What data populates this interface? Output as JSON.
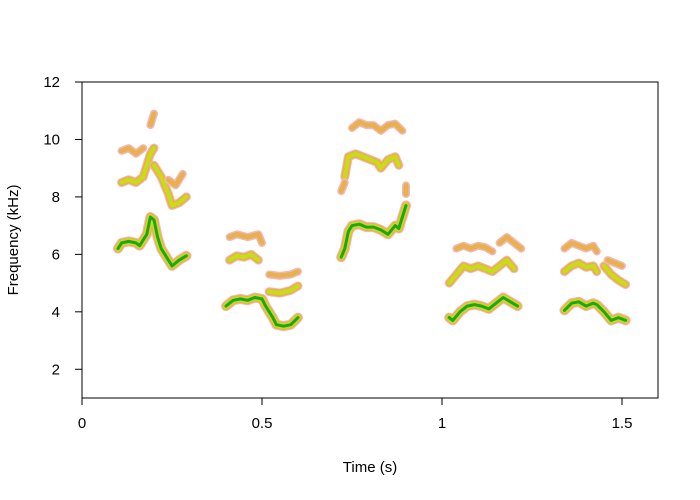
{
  "chart_data": {
    "type": "spectrogram",
    "title": "",
    "xlabel": "Time (s)",
    "ylabel": "Frequency (kHz)",
    "xlim": [
      0,
      1.6
    ],
    "ylim": [
      1,
      12
    ],
    "x_ticks": [
      0,
      0.5,
      1,
      1.5
    ],
    "x_tick_labels": [
      "0",
      "0.5",
      "1",
      "1.5"
    ],
    "y_ticks": [
      2,
      4,
      6,
      8,
      10,
      12
    ],
    "y_tick_labels": [
      "2",
      "4",
      "6",
      "8",
      "10",
      "12"
    ],
    "grid": false,
    "intensity_colors": {
      "low": "#f2b8b8",
      "mid": "#e8b04e",
      "high": "#c8dc18",
      "peak": "#1ea51e"
    },
    "syllables": [
      {
        "start": 0.1,
        "end": 0.29,
        "harmonics": [
          {
            "level": "peak",
            "points": [
              [
                0.1,
                6.2
              ],
              [
                0.11,
                6.4
              ],
              [
                0.13,
                6.45
              ],
              [
                0.15,
                6.4
              ],
              [
                0.16,
                6.3
              ],
              [
                0.18,
                6.7
              ],
              [
                0.19,
                7.3
              ],
              [
                0.2,
                7.2
              ],
              [
                0.21,
                6.6
              ],
              [
                0.22,
                6.2
              ],
              [
                0.24,
                5.8
              ],
              [
                0.25,
                5.6
              ],
              [
                0.27,
                5.8
              ],
              [
                0.29,
                5.95
              ]
            ]
          },
          {
            "level": "high",
            "points": [
              [
                0.11,
                8.5
              ],
              [
                0.13,
                8.6
              ],
              [
                0.15,
                8.5
              ],
              [
                0.17,
                8.7
              ],
              [
                0.19,
                9.5
              ],
              [
                0.2,
                9.7
              ]
            ]
          },
          {
            "level": "high",
            "points": [
              [
                0.2,
                9.1
              ],
              [
                0.22,
                8.7
              ],
              [
                0.24,
                8.1
              ],
              [
                0.25,
                7.7
              ],
              [
                0.27,
                7.8
              ],
              [
                0.29,
                8.0
              ]
            ]
          },
          {
            "level": "mid",
            "points": [
              [
                0.11,
                9.6
              ],
              [
                0.13,
                9.7
              ],
              [
                0.15,
                9.5
              ],
              [
                0.17,
                9.7
              ]
            ]
          },
          {
            "level": "mid",
            "points": [
              [
                0.19,
                10.5
              ],
              [
                0.2,
                10.9
              ]
            ]
          },
          {
            "level": "mid",
            "points": [
              [
                0.24,
                8.6
              ],
              [
                0.26,
                8.4
              ],
              [
                0.28,
                8.8
              ]
            ]
          }
        ]
      },
      {
        "start": 0.4,
        "end": 0.6,
        "harmonics": [
          {
            "level": "peak",
            "points": [
              [
                0.4,
                4.2
              ],
              [
                0.42,
                4.4
              ],
              [
                0.44,
                4.45
              ],
              [
                0.46,
                4.4
              ],
              [
                0.48,
                4.5
              ],
              [
                0.5,
                4.45
              ],
              [
                0.51,
                4.2
              ],
              [
                0.53,
                3.8
              ],
              [
                0.54,
                3.55
              ],
              [
                0.56,
                3.5
              ],
              [
                0.58,
                3.55
              ],
              [
                0.6,
                3.8
              ]
            ]
          },
          {
            "level": "high",
            "points": [
              [
                0.41,
                5.8
              ],
              [
                0.43,
                5.95
              ],
              [
                0.45,
                5.9
              ],
              [
                0.47,
                6.0
              ],
              [
                0.49,
                5.8
              ]
            ]
          },
          {
            "level": "high",
            "points": [
              [
                0.52,
                4.7
              ],
              [
                0.55,
                4.65
              ],
              [
                0.58,
                4.75
              ],
              [
                0.6,
                4.9
              ]
            ]
          },
          {
            "level": "mid",
            "points": [
              [
                0.41,
                6.6
              ],
              [
                0.43,
                6.7
              ],
              [
                0.46,
                6.6
              ],
              [
                0.49,
                6.7
              ],
              [
                0.5,
                6.4
              ]
            ]
          },
          {
            "level": "mid",
            "points": [
              [
                0.52,
                5.3
              ],
              [
                0.55,
                5.25
              ],
              [
                0.58,
                5.3
              ],
              [
                0.6,
                5.4
              ]
            ]
          }
        ]
      },
      {
        "start": 0.72,
        "end": 0.9,
        "harmonics": [
          {
            "level": "peak",
            "points": [
              [
                0.72,
                5.9
              ],
              [
                0.73,
                6.2
              ],
              [
                0.74,
                6.8
              ],
              [
                0.75,
                7.0
              ],
              [
                0.77,
                7.05
              ],
              [
                0.79,
                6.95
              ],
              [
                0.81,
                6.95
              ],
              [
                0.83,
                6.85
              ],
              [
                0.85,
                6.7
              ],
              [
                0.87,
                7.0
              ],
              [
                0.88,
                6.9
              ],
              [
                0.9,
                7.7
              ]
            ]
          },
          {
            "level": "high",
            "points": [
              [
                0.73,
                8.7
              ],
              [
                0.74,
                9.4
              ],
              [
                0.76,
                9.5
              ],
              [
                0.78,
                9.4
              ],
              [
                0.8,
                9.3
              ],
              [
                0.82,
                9.2
              ],
              [
                0.83,
                9.0
              ],
              [
                0.85,
                9.3
              ],
              [
                0.87,
                9.4
              ],
              [
                0.88,
                9.1
              ]
            ]
          },
          {
            "level": "mid",
            "points": [
              [
                0.75,
                10.4
              ],
              [
                0.77,
                10.6
              ],
              [
                0.79,
                10.5
              ],
              [
                0.81,
                10.5
              ],
              [
                0.83,
                10.3
              ],
              [
                0.85,
                10.5
              ],
              [
                0.87,
                10.55
              ],
              [
                0.89,
                10.3
              ]
            ]
          },
          {
            "level": "mid",
            "points": [
              [
                0.72,
                8.2
              ],
              [
                0.73,
                8.5
              ]
            ]
          },
          {
            "level": "mid",
            "points": [
              [
                0.9,
                8.4
              ],
              [
                0.9,
                8.1
              ]
            ]
          }
        ]
      },
      {
        "start": 1.02,
        "end": 1.21,
        "harmonics": [
          {
            "level": "peak",
            "points": [
              [
                1.02,
                3.8
              ],
              [
                1.03,
                3.7
              ],
              [
                1.05,
                4.0
              ],
              [
                1.07,
                4.2
              ],
              [
                1.09,
                4.25
              ],
              [
                1.11,
                4.2
              ],
              [
                1.13,
                4.1
              ],
              [
                1.15,
                4.3
              ],
              [
                1.17,
                4.5
              ],
              [
                1.19,
                4.35
              ],
              [
                1.21,
                4.2
              ]
            ]
          },
          {
            "level": "high",
            "points": [
              [
                1.02,
                5.0
              ],
              [
                1.04,
                5.3
              ],
              [
                1.06,
                5.6
              ],
              [
                1.08,
                5.5
              ],
              [
                1.1,
                5.6
              ],
              [
                1.12,
                5.5
              ],
              [
                1.14,
                5.4
              ],
              [
                1.16,
                5.6
              ],
              [
                1.18,
                5.8
              ],
              [
                1.2,
                5.5
              ]
            ]
          },
          {
            "level": "mid",
            "points": [
              [
                1.04,
                6.2
              ],
              [
                1.06,
                6.3
              ],
              [
                1.08,
                6.2
              ],
              [
                1.1,
                6.3
              ],
              [
                1.12,
                6.25
              ],
              [
                1.14,
                6.1
              ]
            ]
          },
          {
            "level": "mid",
            "points": [
              [
                1.16,
                6.4
              ],
              [
                1.18,
                6.6
              ],
              [
                1.2,
                6.4
              ],
              [
                1.22,
                6.2
              ]
            ]
          }
        ]
      },
      {
        "start": 1.34,
        "end": 1.51,
        "harmonics": [
          {
            "level": "peak",
            "points": [
              [
                1.34,
                4.05
              ],
              [
                1.36,
                4.3
              ],
              [
                1.38,
                4.35
              ],
              [
                1.4,
                4.2
              ],
              [
                1.42,
                4.3
              ],
              [
                1.43,
                4.25
              ],
              [
                1.45,
                4.0
              ],
              [
                1.47,
                3.7
              ],
              [
                1.49,
                3.8
              ],
              [
                1.51,
                3.7
              ]
            ]
          },
          {
            "level": "high",
            "points": [
              [
                1.34,
                5.4
              ],
              [
                1.36,
                5.6
              ],
              [
                1.38,
                5.7
              ],
              [
                1.4,
                5.55
              ],
              [
                1.42,
                5.6
              ],
              [
                1.43,
                5.4
              ]
            ]
          },
          {
            "level": "high",
            "points": [
              [
                1.45,
                5.6
              ],
              [
                1.47,
                5.3
              ],
              [
                1.49,
                5.1
              ],
              [
                1.51,
                4.95
              ]
            ]
          },
          {
            "level": "mid",
            "points": [
              [
                1.34,
                6.2
              ],
              [
                1.36,
                6.4
              ],
              [
                1.38,
                6.3
              ],
              [
                1.4,
                6.2
              ],
              [
                1.42,
                6.3
              ],
              [
                1.43,
                6.1
              ]
            ]
          },
          {
            "level": "mid",
            "points": [
              [
                1.46,
                5.8
              ],
              [
                1.48,
                5.7
              ],
              [
                1.5,
                5.6
              ]
            ]
          }
        ]
      }
    ]
  }
}
